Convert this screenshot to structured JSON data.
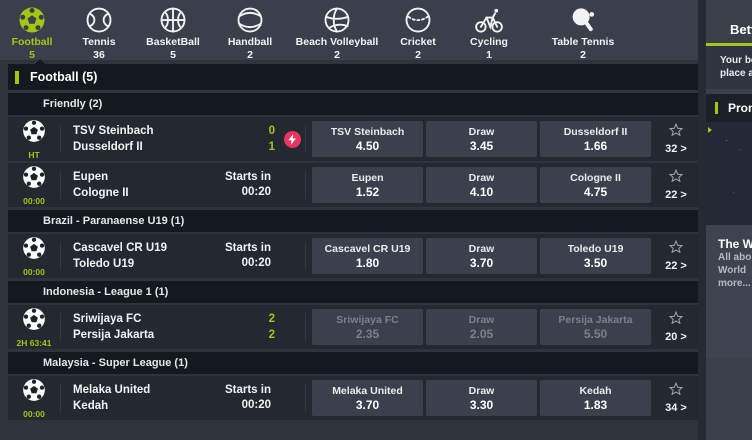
{
  "colors": {
    "accent_green": "#a3c614",
    "live_pink": "#e8355e",
    "nav_bg": "#3a3f4b",
    "row_bg": "#232831",
    "header_bg": "#14181f",
    "odds_button_bg": "#3b414c"
  },
  "ui": {
    "chevron": ">"
  },
  "nav": {
    "items": [
      {
        "label": "Football",
        "count": "5",
        "icon": "football",
        "active": true
      },
      {
        "label": "Tennis",
        "count": "36",
        "icon": "tennis",
        "active": false
      },
      {
        "label": "BasketBall",
        "count": "5",
        "icon": "basketball",
        "active": false
      },
      {
        "label": "Handball",
        "count": "2",
        "icon": "handball",
        "active": false
      },
      {
        "label": "Beach Volleyball",
        "count": "2",
        "icon": "beach-volleyball",
        "active": false
      },
      {
        "label": "Cricket",
        "count": "2",
        "icon": "cricket",
        "active": false
      },
      {
        "label": "Cycling",
        "count": "1",
        "icon": "cycling",
        "active": false
      },
      {
        "label": "Table Tennis",
        "count": "2",
        "icon": "table-tennis",
        "active": false
      }
    ]
  },
  "sport_header": {
    "title": "Football (5)"
  },
  "sections": [
    {
      "league": "Friendly (2)",
      "matches": [
        {
          "home": "TSV Steinbach",
          "away": "Dusseldorf II",
          "time": "HT",
          "live": true,
          "scores": [
            "0",
            "1"
          ],
          "live_badge": true,
          "suspended": false,
          "odds": [
            {
              "label": "TSV Steinbach",
              "value": "4.50"
            },
            {
              "label": "Draw",
              "value": "3.45"
            },
            {
              "label": "Dusseldorf II",
              "value": "1.66"
            }
          ],
          "markets": "32"
        },
        {
          "home": "Eupen",
          "away": "Cologne II",
          "time": "00:00",
          "live": false,
          "starts_label": "Starts in",
          "starts_value": "00:20",
          "live_badge": false,
          "suspended": false,
          "odds": [
            {
              "label": "Eupen",
              "value": "1.52"
            },
            {
              "label": "Draw",
              "value": "4.10"
            },
            {
              "label": "Cologne II",
              "value": "4.75"
            }
          ],
          "markets": "22"
        }
      ]
    },
    {
      "league": "Brazil - Paranaense U19 (1)",
      "matches": [
        {
          "home": "Cascavel CR U19",
          "away": "Toledo U19",
          "time": "00:00",
          "live": false,
          "starts_label": "Starts in",
          "starts_value": "00:20",
          "live_badge": false,
          "suspended": false,
          "odds": [
            {
              "label": "Cascavel CR U19",
              "value": "1.80"
            },
            {
              "label": "Draw",
              "value": "3.70"
            },
            {
              "label": "Toledo U19",
              "value": "3.50"
            }
          ],
          "markets": "22"
        }
      ]
    },
    {
      "league": "Indonesia - League 1 (1)",
      "matches": [
        {
          "home": "Sriwijaya FC",
          "away": "Persija Jakarta",
          "time": "2H 63:41",
          "live": true,
          "scores": [
            "2",
            "2"
          ],
          "live_badge": false,
          "suspended": true,
          "odds": [
            {
              "label": "Sriwijaya FC",
              "value": "2.35"
            },
            {
              "label": "Draw",
              "value": "2.05"
            },
            {
              "label": "Persija Jakarta",
              "value": "5.50"
            }
          ],
          "markets": "20"
        }
      ]
    },
    {
      "league": "Malaysia - Super League (1)",
      "matches": [
        {
          "home": "Melaka United",
          "away": "Kedah",
          "time": "00:00",
          "live": false,
          "starts_label": "Starts in",
          "starts_value": "00:20",
          "live_badge": false,
          "suspended": false,
          "odds": [
            {
              "label": "Melaka United",
              "value": "3.70"
            },
            {
              "label": "Draw",
              "value": "3.30"
            },
            {
              "label": "Kedah",
              "value": "1.83"
            }
          ],
          "markets": "34"
        }
      ]
    }
  ],
  "sidebar": {
    "title": "Bett",
    "betslip_lines": [
      "Your be",
      "place a"
    ],
    "promotions_label": "Promo",
    "promo_card": {
      "title": "The W",
      "lines": [
        "All abo",
        "World",
        "more..."
      ]
    }
  }
}
